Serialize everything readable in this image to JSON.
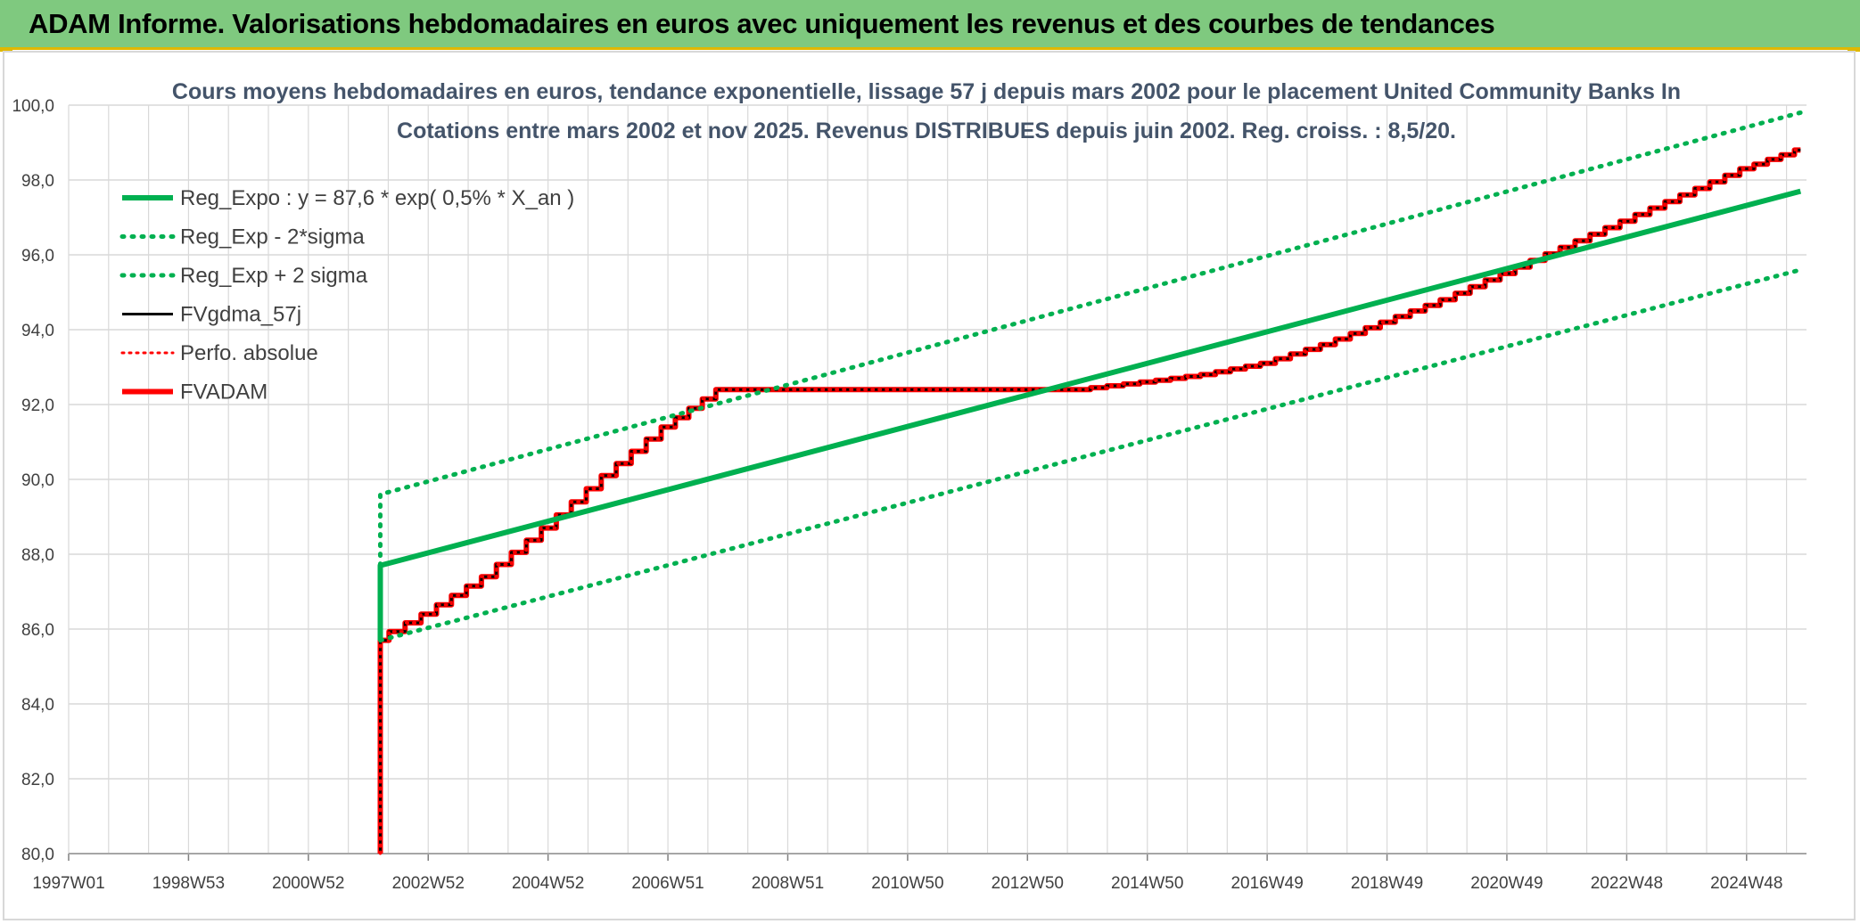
{
  "header": {
    "title": "ADAM Informe. Valorisations hebdomadaires en euros avec uniquement les revenus et des courbes de tendances"
  },
  "colors": {
    "green": "#00b050",
    "red": "#ff0000",
    "black": "#000000",
    "grid": "#d9d9d9",
    "header_bg": "#7fc97f",
    "accent": "#e0b800"
  },
  "chart_data": {
    "type": "line",
    "title": "Cours moyens hebdomadaires en euros, tendance exponentielle, lissage 57 j depuis mars 2002 pour le placement United Community Banks In",
    "subtitle": "Cotations entre mars 2002 et nov 2025. Revenus DISTRIBUES depuis juin 2002. Reg. croiss. : 8,5/20.",
    "xlabel": "",
    "ylabel": "",
    "x_tick_labels": [
      "1997W01",
      "1998W53",
      "2000W52",
      "2002W52",
      "2004W52",
      "2006W51",
      "2008W51",
      "2010W50",
      "2012W50",
      "2014W50",
      "2016W49",
      "2018W49",
      "2020W49",
      "2022W48",
      "2024W48"
    ],
    "x_range": [
      1997.0,
      2026.0
    ],
    "ylim": [
      80,
      100
    ],
    "y_ticks": [
      "80,0",
      "82,0",
      "84,0",
      "86,0",
      "88,0",
      "90,0",
      "92,0",
      "94,0",
      "96,0",
      "98,0",
      "100,0"
    ],
    "grid": true,
    "legend_position": "top-left",
    "series": [
      {
        "name": "Reg_Expo : y = 87,6 * exp( 0,5% *  X_an )",
        "style": "solid-green-thick",
        "x": [
          2002.2,
          2002.2,
          2025.9
        ],
        "y": [
          85.7,
          87.7,
          97.7
        ]
      },
      {
        "name": "Reg_Exp - 2*sigma",
        "style": "dotted-green",
        "x": [
          2002.2,
          2025.9
        ],
        "y": [
          85.7,
          95.6
        ]
      },
      {
        "name": "Reg_Exp + 2 sigma",
        "style": "dotted-green",
        "x": [
          2002.2,
          2002.2,
          2025.9
        ],
        "y": [
          87.7,
          89.6,
          99.8
        ]
      },
      {
        "name": "FVgdma_57j",
        "style": "solid-black",
        "x": [
          2002.2,
          2002.2,
          2003.0,
          2004.0,
          2005.0,
          2006.0,
          2007.0,
          2007.9,
          2012.0,
          2013.9,
          2015.0,
          2016.0,
          2017.0,
          2018.0,
          2019.0,
          2020.0,
          2021.0,
          2022.0,
          2023.0,
          2024.0,
          2025.0,
          2025.9
        ],
        "y": [
          80.0,
          85.7,
          86.4,
          87.4,
          88.7,
          90.1,
          91.4,
          92.4,
          92.4,
          92.4,
          92.6,
          92.8,
          93.1,
          93.6,
          94.2,
          94.8,
          95.5,
          96.2,
          96.9,
          97.6,
          98.3,
          98.8
        ]
      },
      {
        "name": "Perfo. absolue",
        "style": "dotted-red",
        "x": [
          2002.2,
          2002.2,
          2003.0,
          2004.0,
          2005.0,
          2006.0,
          2007.0,
          2007.9,
          2012.0,
          2013.9,
          2015.0,
          2016.0,
          2017.0,
          2018.0,
          2019.0,
          2020.0,
          2021.0,
          2022.0,
          2023.0,
          2024.0,
          2025.0,
          2025.9
        ],
        "y": [
          80.0,
          85.7,
          86.4,
          87.4,
          88.7,
          90.1,
          91.4,
          92.4,
          92.4,
          92.4,
          92.6,
          92.8,
          93.1,
          93.6,
          94.2,
          94.8,
          95.5,
          96.2,
          96.9,
          97.6,
          98.3,
          98.8
        ]
      },
      {
        "name": "FVADAM",
        "style": "solid-red-thick",
        "x": [
          2002.2,
          2002.2,
          2003.0,
          2004.0,
          2005.0,
          2006.0,
          2007.0,
          2007.9,
          2012.0,
          2013.9,
          2015.0,
          2016.0,
          2017.0,
          2018.0,
          2019.0,
          2020.0,
          2021.0,
          2022.0,
          2023.0,
          2024.0,
          2025.0,
          2025.9
        ],
        "y": [
          80.0,
          85.7,
          86.4,
          87.4,
          88.7,
          90.1,
          91.4,
          92.4,
          92.4,
          92.4,
          92.6,
          92.8,
          93.1,
          93.6,
          94.2,
          94.8,
          95.5,
          96.2,
          96.9,
          97.6,
          98.3,
          98.8
        ]
      }
    ]
  }
}
